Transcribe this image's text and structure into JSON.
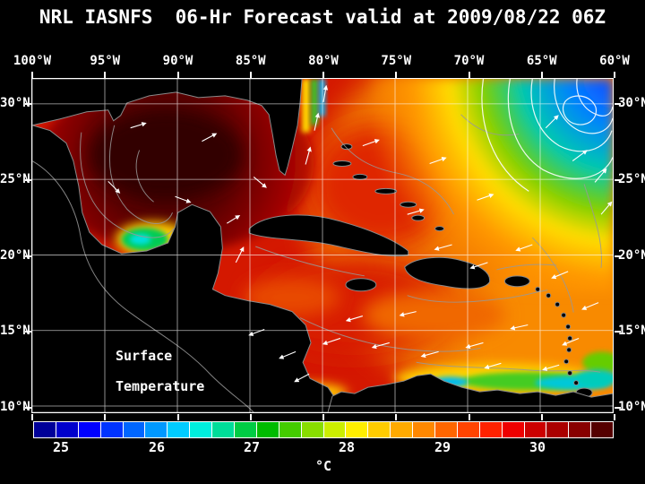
{
  "title": "NRL IASNFS  06-Hr Forecast valid at 2009/08/22 06Z",
  "map": {
    "lon_labels": [
      "100°W",
      "95°W",
      "90°W",
      "85°W",
      "80°W",
      "75°W",
      "70°W",
      "65°W",
      "60°W"
    ],
    "lat_labels": [
      "30°N",
      "25°N",
      "20°N",
      "15°N",
      "10°N"
    ],
    "annotation_line1": "Surface",
    "annotation_line2": "Temperature"
  },
  "colorbar": {
    "tick_labels": [
      "25",
      "26",
      "27",
      "28",
      "29",
      "30"
    ],
    "unit": "°C",
    "cell_colors": [
      "#000099",
      "#0000cc",
      "#0000ff",
      "#0033ff",
      "#0066ff",
      "#0099ff",
      "#00ccff",
      "#00eedd",
      "#00dd99",
      "#00cc44",
      "#00bb00",
      "#44cc00",
      "#88dd00",
      "#ccee00",
      "#ffee00",
      "#ffcc00",
      "#ffaa00",
      "#ff8800",
      "#ff6600",
      "#ff4400",
      "#ff2200",
      "#ee0000",
      "#cc0000",
      "#aa0000",
      "#880000",
      "#550000"
    ]
  },
  "colors": {
    "background": "#000000",
    "frame": "#ffffff",
    "text": "#ffffff",
    "contour": "#999999"
  }
}
